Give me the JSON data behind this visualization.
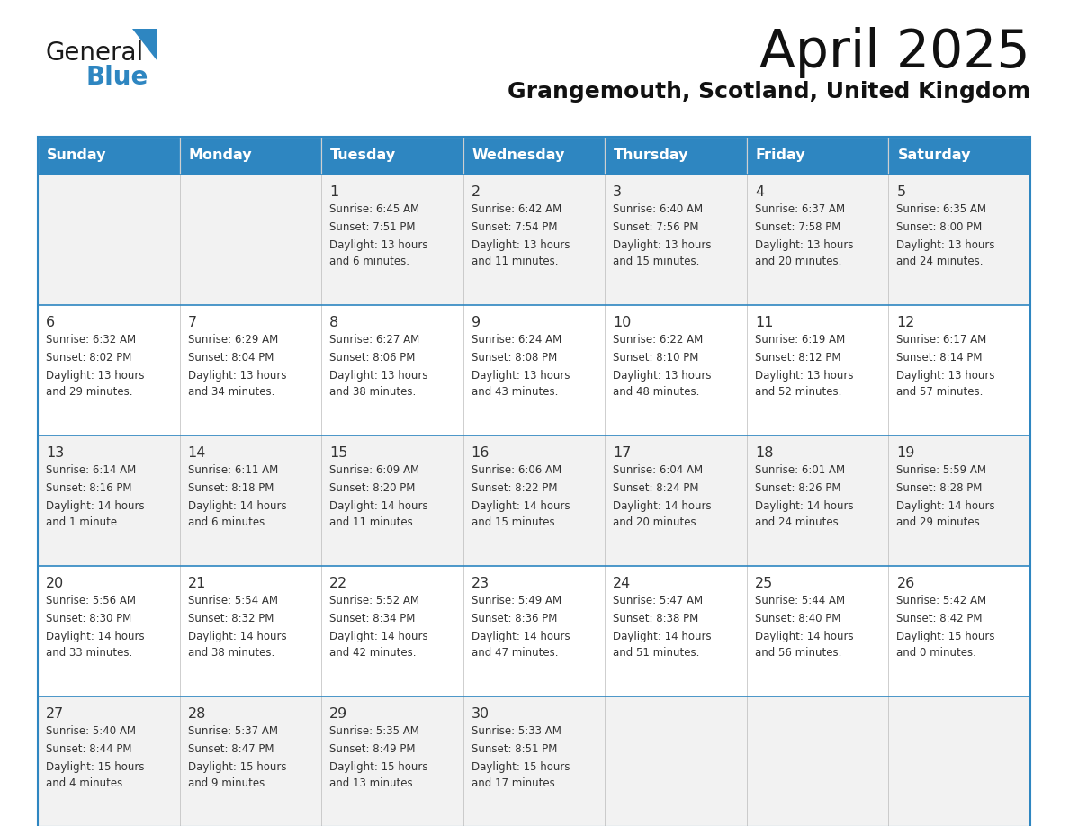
{
  "title": "April 2025",
  "subtitle": "Grangemouth, Scotland, United Kingdom",
  "header_bg": "#2E86C1",
  "header_text_color": "#FFFFFF",
  "header_days": [
    "Sunday",
    "Monday",
    "Tuesday",
    "Wednesday",
    "Thursday",
    "Friday",
    "Saturday"
  ],
  "row_bg_even": "#F2F2F2",
  "row_bg_odd": "#FFFFFF",
  "border_color": "#2E86C1",
  "text_color": "#333333",
  "logo_general_color": "#1a1a1a",
  "logo_blue_color": "#2E86C1",
  "weeks": [
    [
      {
        "day": "",
        "sunrise": "",
        "sunset": "",
        "daylight": ""
      },
      {
        "day": "",
        "sunrise": "",
        "sunset": "",
        "daylight": ""
      },
      {
        "day": "1",
        "sunrise": "Sunrise: 6:45 AM",
        "sunset": "Sunset: 7:51 PM",
        "daylight": "Daylight: 13 hours\nand 6 minutes."
      },
      {
        "day": "2",
        "sunrise": "Sunrise: 6:42 AM",
        "sunset": "Sunset: 7:54 PM",
        "daylight": "Daylight: 13 hours\nand 11 minutes."
      },
      {
        "day": "3",
        "sunrise": "Sunrise: 6:40 AM",
        "sunset": "Sunset: 7:56 PM",
        "daylight": "Daylight: 13 hours\nand 15 minutes."
      },
      {
        "day": "4",
        "sunrise": "Sunrise: 6:37 AM",
        "sunset": "Sunset: 7:58 PM",
        "daylight": "Daylight: 13 hours\nand 20 minutes."
      },
      {
        "day": "5",
        "sunrise": "Sunrise: 6:35 AM",
        "sunset": "Sunset: 8:00 PM",
        "daylight": "Daylight: 13 hours\nand 24 minutes."
      }
    ],
    [
      {
        "day": "6",
        "sunrise": "Sunrise: 6:32 AM",
        "sunset": "Sunset: 8:02 PM",
        "daylight": "Daylight: 13 hours\nand 29 minutes."
      },
      {
        "day": "7",
        "sunrise": "Sunrise: 6:29 AM",
        "sunset": "Sunset: 8:04 PM",
        "daylight": "Daylight: 13 hours\nand 34 minutes."
      },
      {
        "day": "8",
        "sunrise": "Sunrise: 6:27 AM",
        "sunset": "Sunset: 8:06 PM",
        "daylight": "Daylight: 13 hours\nand 38 minutes."
      },
      {
        "day": "9",
        "sunrise": "Sunrise: 6:24 AM",
        "sunset": "Sunset: 8:08 PM",
        "daylight": "Daylight: 13 hours\nand 43 minutes."
      },
      {
        "day": "10",
        "sunrise": "Sunrise: 6:22 AM",
        "sunset": "Sunset: 8:10 PM",
        "daylight": "Daylight: 13 hours\nand 48 minutes."
      },
      {
        "day": "11",
        "sunrise": "Sunrise: 6:19 AM",
        "sunset": "Sunset: 8:12 PM",
        "daylight": "Daylight: 13 hours\nand 52 minutes."
      },
      {
        "day": "12",
        "sunrise": "Sunrise: 6:17 AM",
        "sunset": "Sunset: 8:14 PM",
        "daylight": "Daylight: 13 hours\nand 57 minutes."
      }
    ],
    [
      {
        "day": "13",
        "sunrise": "Sunrise: 6:14 AM",
        "sunset": "Sunset: 8:16 PM",
        "daylight": "Daylight: 14 hours\nand 1 minute."
      },
      {
        "day": "14",
        "sunrise": "Sunrise: 6:11 AM",
        "sunset": "Sunset: 8:18 PM",
        "daylight": "Daylight: 14 hours\nand 6 minutes."
      },
      {
        "day": "15",
        "sunrise": "Sunrise: 6:09 AM",
        "sunset": "Sunset: 8:20 PM",
        "daylight": "Daylight: 14 hours\nand 11 minutes."
      },
      {
        "day": "16",
        "sunrise": "Sunrise: 6:06 AM",
        "sunset": "Sunset: 8:22 PM",
        "daylight": "Daylight: 14 hours\nand 15 minutes."
      },
      {
        "day": "17",
        "sunrise": "Sunrise: 6:04 AM",
        "sunset": "Sunset: 8:24 PM",
        "daylight": "Daylight: 14 hours\nand 20 minutes."
      },
      {
        "day": "18",
        "sunrise": "Sunrise: 6:01 AM",
        "sunset": "Sunset: 8:26 PM",
        "daylight": "Daylight: 14 hours\nand 24 minutes."
      },
      {
        "day": "19",
        "sunrise": "Sunrise: 5:59 AM",
        "sunset": "Sunset: 8:28 PM",
        "daylight": "Daylight: 14 hours\nand 29 minutes."
      }
    ],
    [
      {
        "day": "20",
        "sunrise": "Sunrise: 5:56 AM",
        "sunset": "Sunset: 8:30 PM",
        "daylight": "Daylight: 14 hours\nand 33 minutes."
      },
      {
        "day": "21",
        "sunrise": "Sunrise: 5:54 AM",
        "sunset": "Sunset: 8:32 PM",
        "daylight": "Daylight: 14 hours\nand 38 minutes."
      },
      {
        "day": "22",
        "sunrise": "Sunrise: 5:52 AM",
        "sunset": "Sunset: 8:34 PM",
        "daylight": "Daylight: 14 hours\nand 42 minutes."
      },
      {
        "day": "23",
        "sunrise": "Sunrise: 5:49 AM",
        "sunset": "Sunset: 8:36 PM",
        "daylight": "Daylight: 14 hours\nand 47 minutes."
      },
      {
        "day": "24",
        "sunrise": "Sunrise: 5:47 AM",
        "sunset": "Sunset: 8:38 PM",
        "daylight": "Daylight: 14 hours\nand 51 minutes."
      },
      {
        "day": "25",
        "sunrise": "Sunrise: 5:44 AM",
        "sunset": "Sunset: 8:40 PM",
        "daylight": "Daylight: 14 hours\nand 56 minutes."
      },
      {
        "day": "26",
        "sunrise": "Sunrise: 5:42 AM",
        "sunset": "Sunset: 8:42 PM",
        "daylight": "Daylight: 15 hours\nand 0 minutes."
      }
    ],
    [
      {
        "day": "27",
        "sunrise": "Sunrise: 5:40 AM",
        "sunset": "Sunset: 8:44 PM",
        "daylight": "Daylight: 15 hours\nand 4 minutes."
      },
      {
        "day": "28",
        "sunrise": "Sunrise: 5:37 AM",
        "sunset": "Sunset: 8:47 PM",
        "daylight": "Daylight: 15 hours\nand 9 minutes."
      },
      {
        "day": "29",
        "sunrise": "Sunrise: 5:35 AM",
        "sunset": "Sunset: 8:49 PM",
        "daylight": "Daylight: 15 hours\nand 13 minutes."
      },
      {
        "day": "30",
        "sunrise": "Sunrise: 5:33 AM",
        "sunset": "Sunset: 8:51 PM",
        "daylight": "Daylight: 15 hours\nand 17 minutes."
      },
      {
        "day": "",
        "sunrise": "",
        "sunset": "",
        "daylight": ""
      },
      {
        "day": "",
        "sunrise": "",
        "sunset": "",
        "daylight": ""
      },
      {
        "day": "",
        "sunrise": "",
        "sunset": "",
        "daylight": ""
      }
    ]
  ]
}
